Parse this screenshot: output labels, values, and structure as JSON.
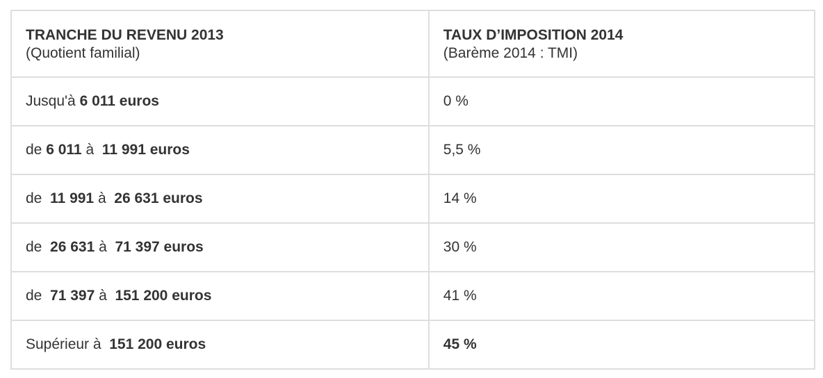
{
  "header": {
    "left_title": "TRANCHE DU REVENU 2013",
    "left_subtitle": "(Quotient familial)",
    "right_title": "TAUX D’IMPOSITION 2014",
    "right_subtitle": "(Barème 2014 : TMI)"
  },
  "rows": [
    {
      "pre": "Jusqu'à ",
      "from": "6 011 euros",
      "mid": "",
      "to": "",
      "rate": "0 %",
      "rate_bold": false
    },
    {
      "pre": "de ",
      "from": "6 011",
      "mid": " à  ",
      "to": "11 991 euros",
      "rate": "5,5 %",
      "rate_bold": false
    },
    {
      "pre": "de  ",
      "from": "11 991",
      "mid": " à  ",
      "to": "26 631 euros",
      "rate": "14 %",
      "rate_bold": false
    },
    {
      "pre": "de  ",
      "from": "26 631",
      "mid": " à  ",
      "to": "71 397 euros",
      "rate": "30 %",
      "rate_bold": false
    },
    {
      "pre": "de  ",
      "from": "71 397",
      "mid": " à  ",
      "to": "151 200 euros",
      "rate": "41 %",
      "rate_bold": false
    },
    {
      "pre": "Supérieur à  ",
      "from": "151 200 euros",
      "mid": "",
      "to": "",
      "rate": "45 %",
      "rate_bold": true
    }
  ]
}
